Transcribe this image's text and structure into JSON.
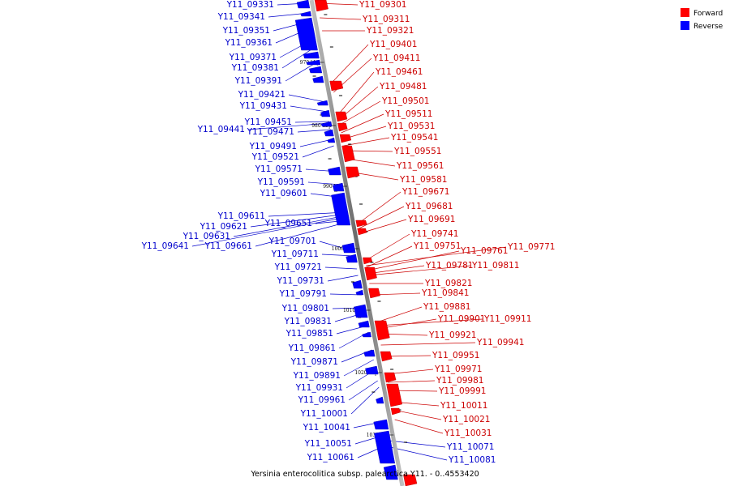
{
  "legend": {
    "forward_label": "Forward",
    "reverse_label": "Reverse",
    "forward_color": "#ff0000",
    "reverse_color": "#0000ff"
  },
  "caption": "Yersinia enterocolitica subsp. palearctica Y11. - 0..4553420",
  "scale_ticks": [
    "970 kbp",
    "980 kbp",
    "990 kbp",
    "1000 kbp",
    "1010 kbp",
    "1020 kbp",
    "1030 kbp"
  ],
  "reverse_genes": [
    "Y11_09331",
    "Y11_09341",
    "Y11_09351",
    "Y11_09361",
    "Y11_09371",
    "Y11_09381",
    "Y11_09391",
    "Y11_09421",
    "Y11_09431",
    "Y11_09451",
    "Y11_09441",
    "Y11_09471",
    "Y11_09491",
    "Y11_09521",
    "Y11_09571",
    "Y11_09591",
    "Y11_09601",
    "Y11_09611",
    "Y11_09621",
    "Y11_09651",
    "Y11_09631",
    "Y11_09641",
    "Y11_09661",
    "Y11_09701",
    "Y11_09711",
    "Y11_09721",
    "Y11_09731",
    "Y11_09791",
    "Y11_09801",
    "Y11_09831",
    "Y11_09851",
    "Y11_09861",
    "Y11_09871",
    "Y11_09891",
    "Y11_09931",
    "Y11_09961",
    "Y11_10001",
    "Y11_10041",
    "Y11_10051",
    "Y11_10061",
    "Y11_10071",
    "Y11_10081"
  ],
  "forward_genes": [
    "Y11_09301",
    "Y11_09311",
    "Y11_09321",
    "Y11_09401",
    "Y11_09411",
    "Y11_09461",
    "Y11_09481",
    "Y11_09501",
    "Y11_09511",
    "Y11_09531",
    "Y11_09541",
    "Y11_09551",
    "Y11_09561",
    "Y11_09581",
    "Y11_09671",
    "Y11_09681",
    "Y11_09691",
    "Y11_09741",
    "Y11_09751",
    "Y11_09761",
    "Y11_09771",
    "Y11_09781",
    "Y11_09811",
    "Y11_09821",
    "Y11_09841",
    "Y11_09881",
    "Y11_09901",
    "Y11_09911",
    "Y11_09921",
    "Y11_09941",
    "Y11_09951",
    "Y11_09971",
    "Y11_09981",
    "Y11_09991",
    "Y11_10011",
    "Y11_10021",
    "Y11_10031"
  ]
}
